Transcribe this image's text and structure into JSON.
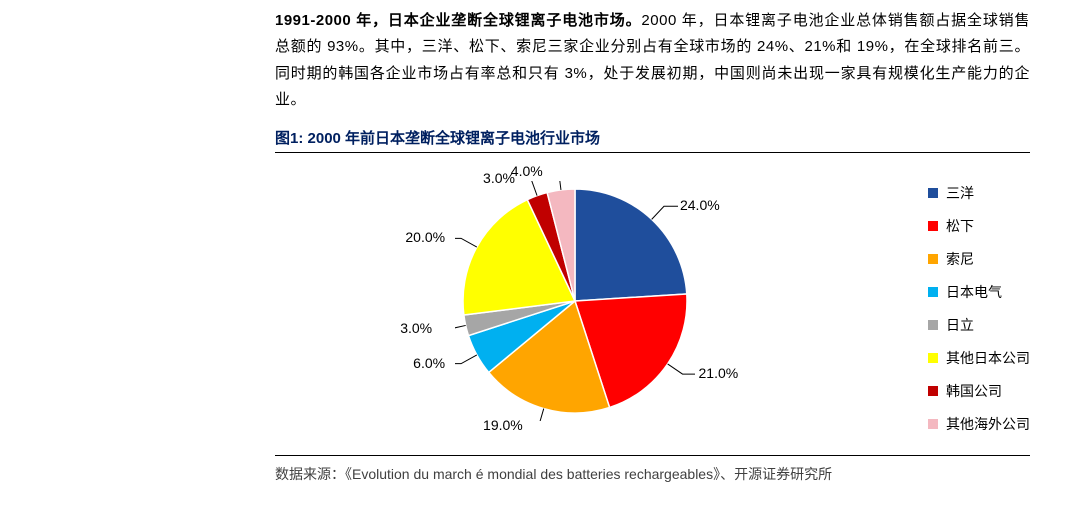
{
  "paragraph": {
    "bold_lead": "1991-2000 年，日本企业垄断全球锂离子电池市场。",
    "rest": "2000 年，日本锂离子电池企业总体销售额占据全球销售总额的 93%。其中，三洋、松下、索尼三家企业分别占有全球市场的 24%、21%和 19%，在全球排名前三。同时期的韩国各企业市场占有率总和只有 3%，处于发展初期，中国则尚未出现一家具有规模化生产能力的企业。"
  },
  "figure": {
    "title": "图1:  2000 年前日本垄断全球锂离子电池行业市场",
    "source": "数据来源：《Evolution du march é mondial des batteries rechargeables》、开源证券研究所",
    "chart": {
      "type": "pie",
      "background_color": "#ffffff",
      "radius": 112,
      "start_angle": -90,
      "stroke_color": "#ffffff",
      "stroke_width": 1.5,
      "label_fontsize": 14,
      "label_color": "#000000",
      "legend_fontsize": 14,
      "legend_swatch_size": 10,
      "slices": [
        {
          "label": "三洋",
          "value": 24.0,
          "pct_label": "24.0%",
          "color": "#1f4e9c"
        },
        {
          "label": "松下",
          "value": 21.0,
          "pct_label": "21.0%",
          "color": "#ff0000"
        },
        {
          "label": "索尼",
          "value": 19.0,
          "pct_label": "19.0%",
          "color": "#ffa500"
        },
        {
          "label": "日本电气",
          "value": 6.0,
          "pct_label": "6.0%",
          "color": "#00b0f0"
        },
        {
          "label": "日立",
          "value": 3.0,
          "pct_label": "3.0%",
          "color": "#a6a6a6"
        },
        {
          "label": "其他日本公司",
          "value": 20.0,
          "pct_label": "20.0%",
          "color": "#ffff00"
        },
        {
          "label": "韩国公司",
          "value": 3.0,
          "pct_label": "3.0%",
          "color": "#c00000"
        },
        {
          "label": "其他海外公司",
          "value": 4.0,
          "pct_label": "4.0%",
          "color": "#f4b8c0"
        }
      ]
    }
  }
}
